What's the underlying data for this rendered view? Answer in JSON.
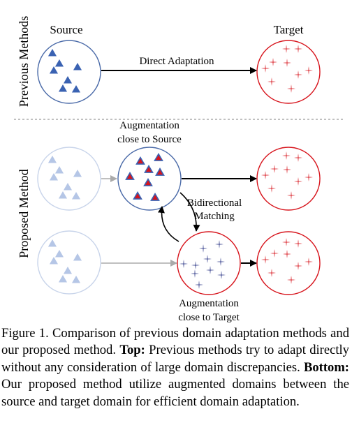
{
  "labels": {
    "previous_methods": "Previous Methods",
    "proposed_method": "Proposed Method",
    "source": "Source",
    "target": "Target",
    "direct_adaptation": "Direct Adaptation",
    "aug_source_line1": "Augmentation",
    "aug_source_line2": "close to Source",
    "bidirectional_line1": "Bidirectional",
    "bidirectional_line2": "Matching",
    "aug_target_line1": "Augmentation",
    "aug_target_line2": "close to Target"
  },
  "caption": {
    "prefix": "Figure 1. Comparison of previous domain adaptation methods and our proposed method. ",
    "top_label": "Top:",
    "top_text": " Previous methods try to adapt directly without any consideration of large domain discrepancies. ",
    "bottom_label": "Bottom:",
    "bottom_text": " Our proposed method utilize augmented domains between the source and target domain for efficient domain adaptation."
  },
  "colors": {
    "source_blue": "#3a62b2",
    "source_border": "#4a6aa8",
    "target_red": "#d7141c",
    "faded_blue": "#b5c6e6",
    "faded_border": "#c8d4ea",
    "target_aug_purple": "#2a3585",
    "arrow_gray": "#aaaaaa",
    "divider": "#9a9a9a"
  }
}
